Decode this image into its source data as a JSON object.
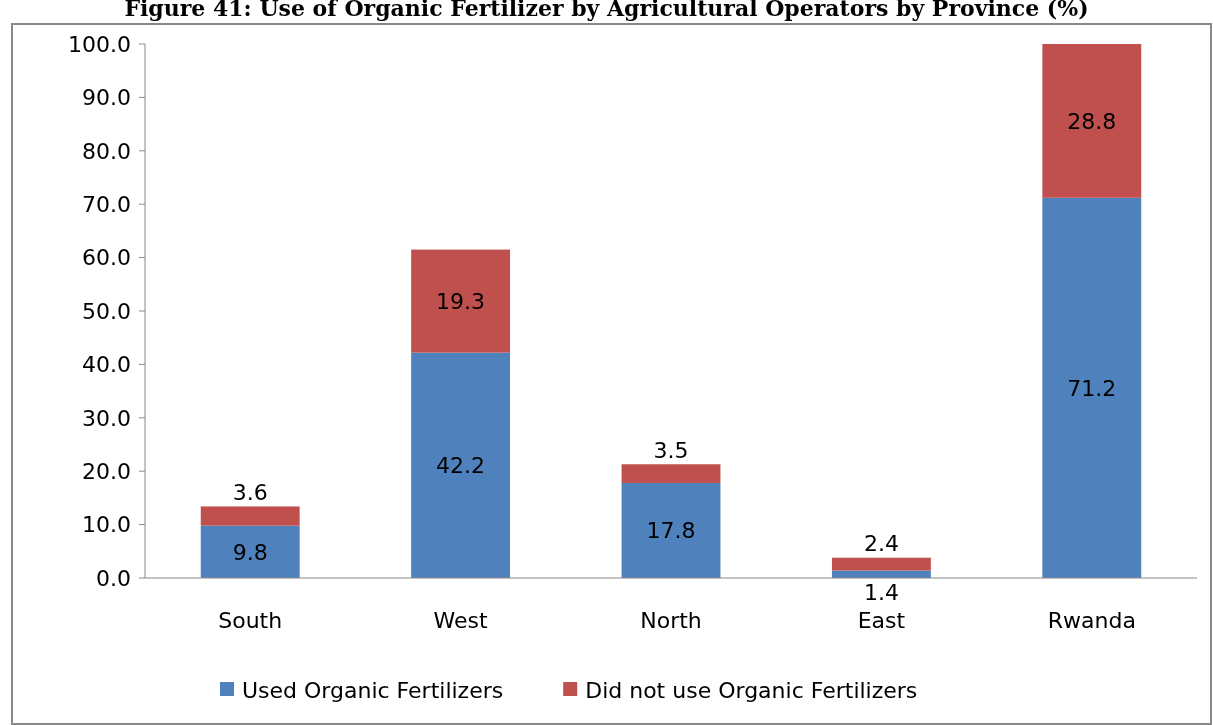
{
  "chart_data": {
    "type": "bar",
    "title": "Figure 41: Use of Organic Fertilizer by Agricultural Operators by Province (%)",
    "categories": [
      "South",
      "West",
      "North",
      "East",
      "Rwanda"
    ],
    "stacked": true,
    "series": [
      {
        "name": "Used Organic Fertilizers",
        "color": "#4f81bd",
        "values": [
          9.8,
          42.2,
          17.8,
          1.4,
          71.2
        ]
      },
      {
        "name": "Did not use Organic Fertilizers",
        "color": "#c0504d",
        "values": [
          3.6,
          19.3,
          3.5,
          2.4,
          28.8
        ]
      }
    ],
    "ylim": [
      0,
      100
    ],
    "yticks": [
      {
        "value": 0,
        "label": "0.0"
      },
      {
        "value": 10,
        "label": "10.0"
      },
      {
        "value": 20,
        "label": "20.0"
      },
      {
        "value": 30,
        "label": "30.0"
      },
      {
        "value": 40,
        "label": "40.0"
      },
      {
        "value": 50,
        "label": "50.0"
      },
      {
        "value": 60,
        "label": "60.0"
      },
      {
        "value": 70,
        "label": "70.0"
      },
      {
        "value": 80,
        "label": "80.0"
      },
      {
        "value": 90,
        "label": "90.0"
      },
      {
        "value": 100,
        "label": "100.0"
      }
    ],
    "data_labels": true,
    "legend": "bottom",
    "grid": false
  }
}
